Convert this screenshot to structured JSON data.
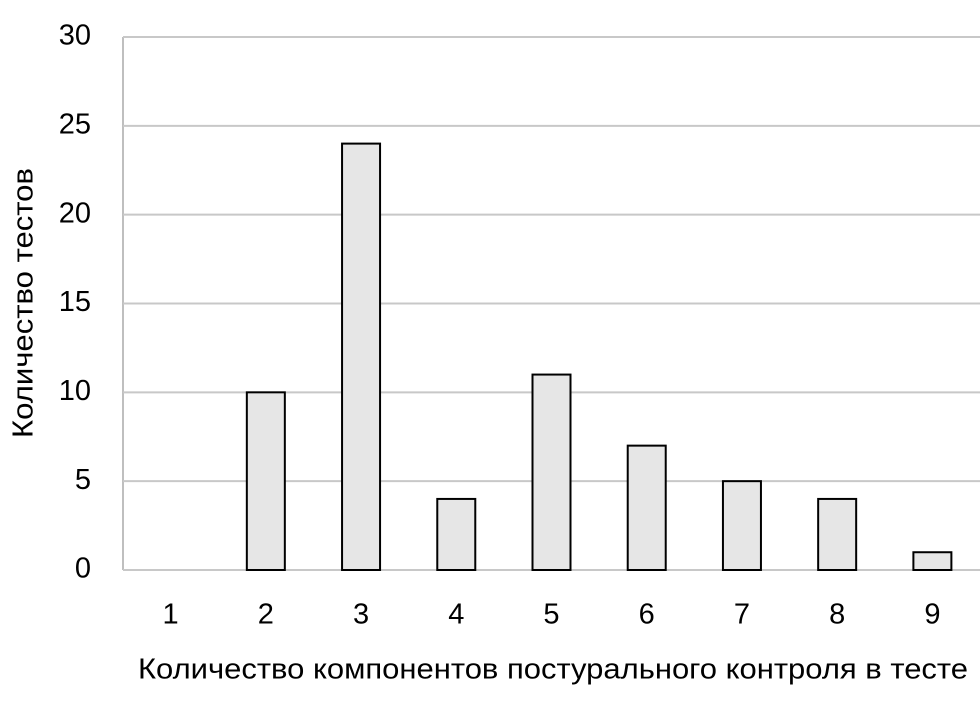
{
  "chart_data": {
    "type": "bar",
    "x_label": "Количество компонентов постурального контроля в тесте",
    "y_label": "Количество тестов",
    "categories": [
      "1",
      "2",
      "3",
      "4",
      "5",
      "6",
      "7",
      "8",
      "9"
    ],
    "values": [
      0,
      10,
      24,
      4,
      11,
      7,
      5,
      4,
      1
    ],
    "color": "#e6e6e6",
    "ylim": [
      0,
      30
    ],
    "yticks": [
      0,
      5,
      10,
      15,
      20,
      25,
      30
    ],
    "grid": true
  }
}
